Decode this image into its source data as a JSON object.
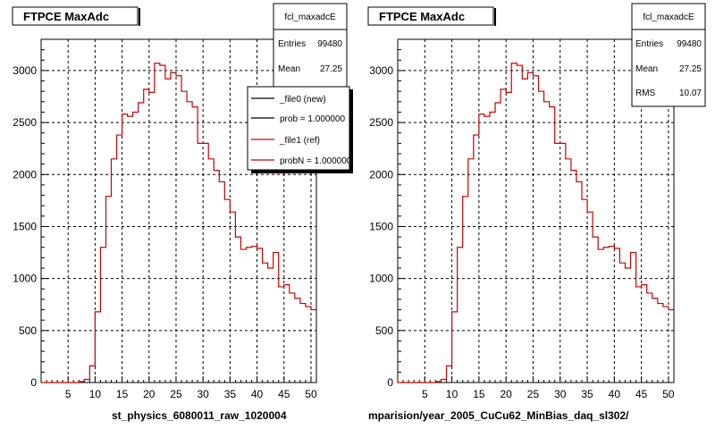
{
  "colors": {
    "ref_line": "#cc0000",
    "new_line": "#000000",
    "grid": "#000000",
    "shadow": "#000000"
  },
  "chart_data": [
    {
      "type": "line",
      "title": "FTPCE MaxAdc",
      "xlabel": "st_physics_6080011_raw_1020004",
      "ylabel": "",
      "xlim": [
        0,
        51
      ],
      "ylim": [
        0,
        3300
      ],
      "grid": true,
      "x_ticks": [
        5,
        10,
        15,
        20,
        25,
        30,
        35,
        40,
        45,
        50
      ],
      "y_ticks": [
        0,
        500,
        1000,
        1500,
        2000,
        2500,
        3000
      ],
      "bin_edges_start": 0,
      "bin_width": 1,
      "series": [
        {
          "name": "_file1 (ref)",
          "values": [
            0,
            0,
            0,
            0,
            0,
            0,
            0,
            10,
            30,
            160,
            680,
            1300,
            1790,
            2150,
            2380,
            2580,
            2560,
            2600,
            2690,
            2820,
            2790,
            3070,
            3050,
            2920,
            2980,
            2950,
            2800,
            2700,
            2650,
            2300,
            2300,
            2150,
            2040,
            1930,
            1760,
            1640,
            1400,
            1280,
            1300,
            1310,
            1290,
            1150,
            1100,
            1250,
            920,
            940,
            860,
            810,
            760,
            730,
            700
          ]
        }
      ],
      "stats": {
        "name": "fcl_maxadcE",
        "rows": [
          {
            "label": "Entries",
            "value": "99480"
          },
          {
            "label": "Mean",
            "value": "27.25"
          }
        ]
      },
      "legend": {
        "position": "top-right",
        "entries": [
          {
            "label": "_file0 (new)",
            "color": "#000000"
          },
          {
            "label": "prob = 1.000000",
            "color": "#000000"
          },
          {
            "label": "_file1 (ref)",
            "color": "#cc0000"
          },
          {
            "label": "probN = 1.000000",
            "color": "#cc0000"
          }
        ]
      }
    },
    {
      "type": "line",
      "title": "FTPCE MaxAdc",
      "xlabel": "mparision/year_2005_CuCu62_MinBias_daq_sl302/",
      "ylabel": "",
      "xlim": [
        0,
        51
      ],
      "ylim": [
        0,
        3300
      ],
      "grid": true,
      "x_ticks": [
        5,
        10,
        15,
        20,
        25,
        30,
        35,
        40,
        45,
        50
      ],
      "y_ticks": [
        0,
        500,
        1000,
        1500,
        2000,
        2500,
        3000
      ],
      "bin_edges_start": 0,
      "bin_width": 1,
      "series": [
        {
          "name": "",
          "values": [
            0,
            0,
            0,
            0,
            0,
            0,
            0,
            10,
            30,
            160,
            680,
            1300,
            1790,
            2150,
            2380,
            2580,
            2560,
            2600,
            2690,
            2820,
            2790,
            3070,
            3050,
            2920,
            2980,
            2950,
            2800,
            2700,
            2650,
            2300,
            2300,
            2150,
            2040,
            1930,
            1760,
            1640,
            1400,
            1280,
            1300,
            1310,
            1290,
            1150,
            1100,
            1250,
            920,
            940,
            860,
            810,
            760,
            730,
            700
          ]
        }
      ],
      "stats": {
        "name": "fcl_maxadcE",
        "rows": [
          {
            "label": "Entries",
            "value": "99480"
          },
          {
            "label": "Mean",
            "value": "27.25"
          },
          {
            "label": "RMS",
            "value": "10.07"
          }
        ]
      }
    }
  ]
}
